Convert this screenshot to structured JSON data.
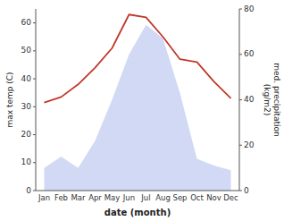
{
  "chart_data": {
    "type": "line",
    "categories": [
      "Jan",
      "Feb",
      "Mar",
      "Apr",
      "May",
      "Jun",
      "Jul",
      "Aug",
      "Sep",
      "Oct",
      "Nov",
      "Dec"
    ],
    "xlabel": "date (month)",
    "ylabel": "max temp (C)",
    "y2label": "med. precipitation\n(kg/m2)",
    "series": [
      {
        "type": "area",
        "axis": "y2",
        "color": "#b8c4f0",
        "values": [
          10,
          15,
          10,
          22,
          40,
          60,
          73,
          67,
          43,
          14,
          11,
          9
        ]
      },
      {
        "type": "line",
        "color": "#c0392b",
        "values": [
          31.5,
          33.5,
          38,
          44,
          51,
          63,
          62,
          55,
          47,
          46,
          39,
          33
        ]
      }
    ],
    "ylim": [
      0,
      65
    ],
    "yticks": [
      0,
      10,
      20,
      30,
      40,
      50,
      60
    ],
    "y2lim": [
      0,
      80
    ],
    "y2ticks": [
      0,
      20,
      40,
      60,
      80
    ],
    "grid": false
  }
}
